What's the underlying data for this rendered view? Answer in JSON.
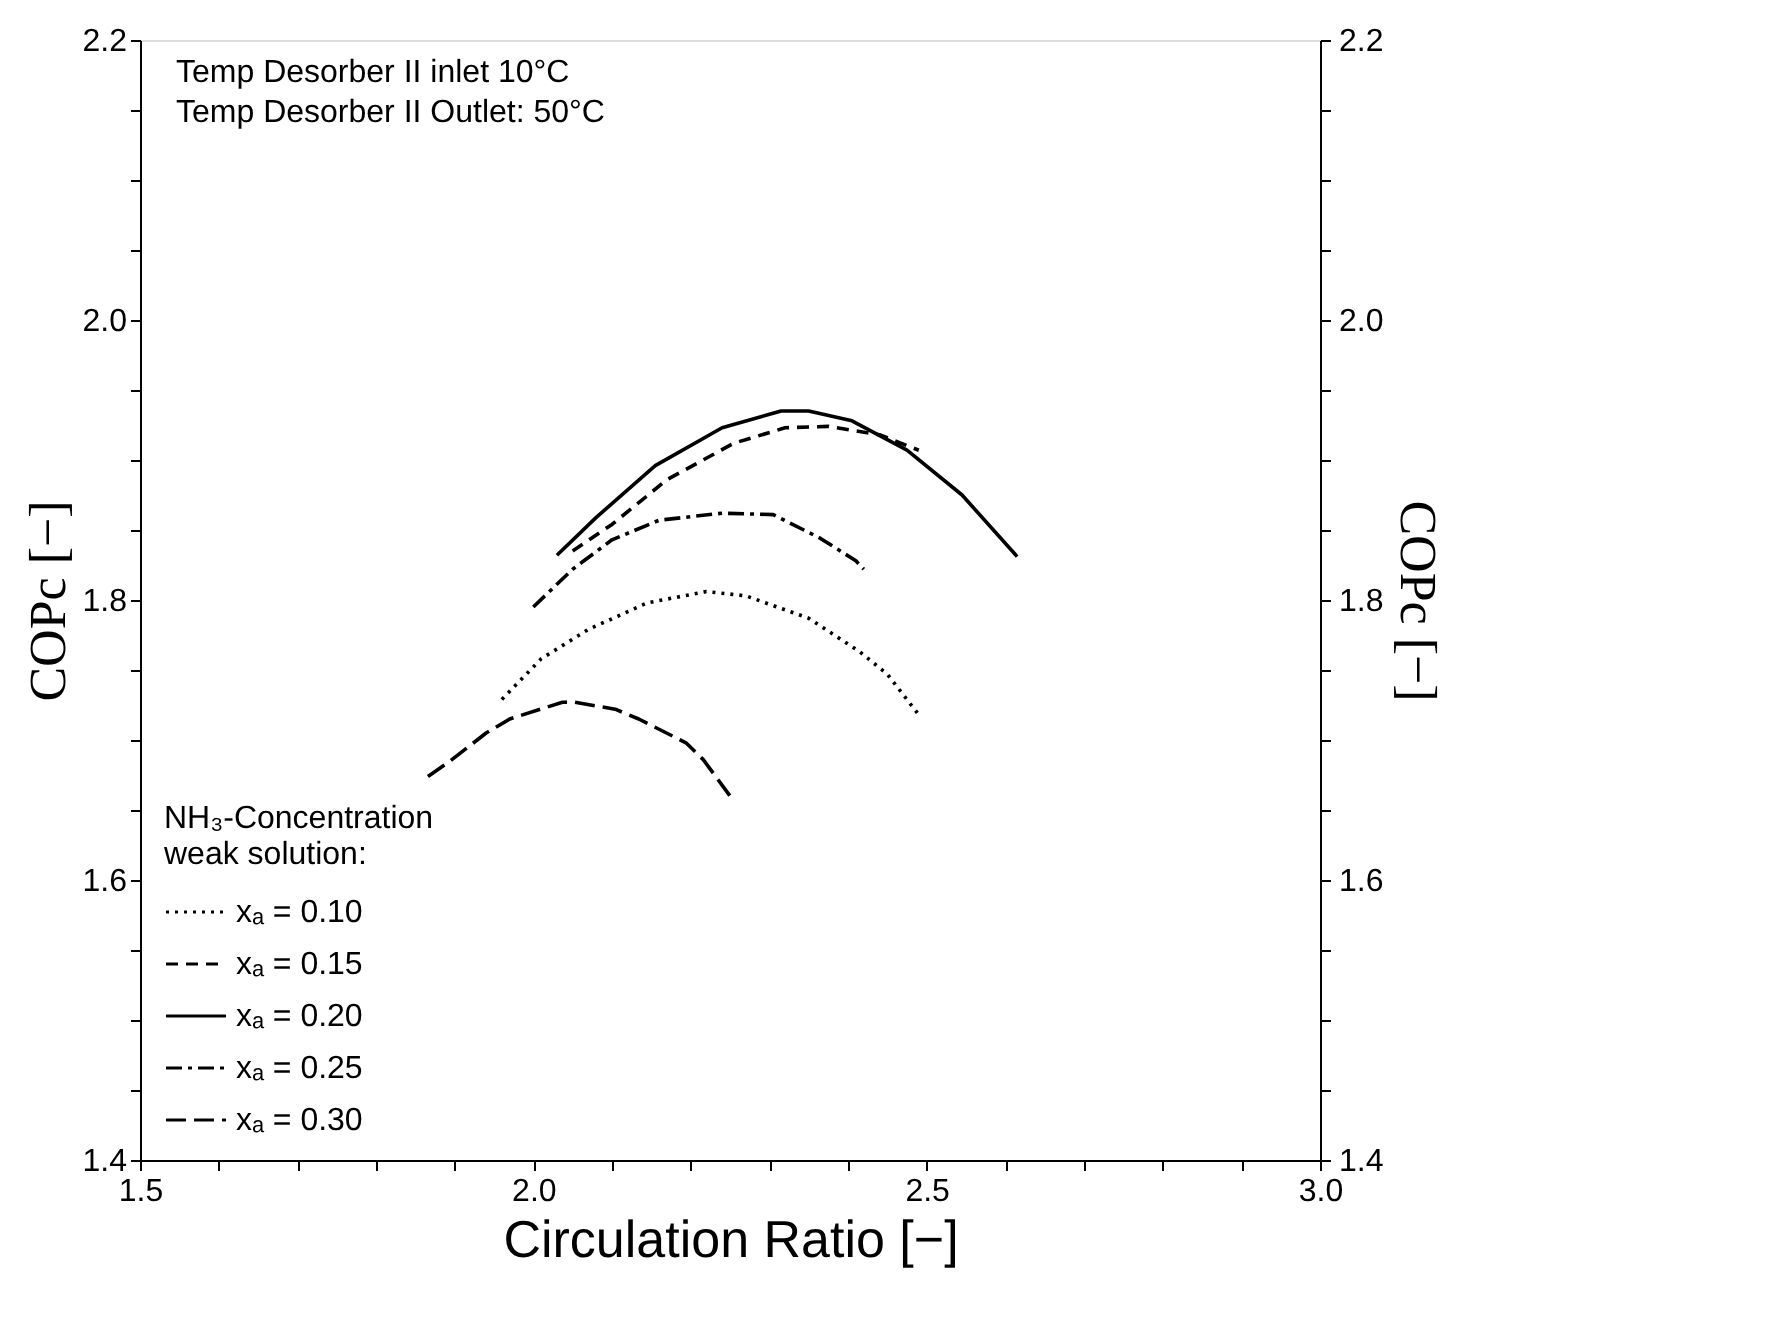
{
  "chart_data": {
    "type": "line",
    "xlabel": "Circulation Ratio  [−]",
    "ylabel": "COPc  [−]",
    "y2label": "COPc  [−]",
    "legend_title": "NH₃-Concentration\nweak solution:",
    "annotations": [
      "Temp  Desorber II inlet     10°C",
      "Temp  Desorber II Outlet:  50°C"
    ],
    "xlim": [
      1.5,
      3.0
    ],
    "ylim": [
      1.4,
      2.2
    ],
    "y2lim": [
      1.4,
      2.2
    ],
    "xticks": [
      {
        "value": 1.5,
        "label": "1.5"
      },
      {
        "value": 1.6,
        "label": null
      },
      {
        "value": 1.7,
        "label": null
      },
      {
        "value": 1.8,
        "label": null
      },
      {
        "value": 1.9,
        "label": null
      },
      {
        "value": 2.0,
        "label": "2.0"
      },
      {
        "value": 2.1,
        "label": null
      },
      {
        "value": 2.2,
        "label": null
      },
      {
        "value": 2.3,
        "label": null
      },
      {
        "value": 2.4,
        "label": null
      },
      {
        "value": 2.5,
        "label": "2.5"
      },
      {
        "value": 2.6,
        "label": null
      },
      {
        "value": 2.7,
        "label": null
      },
      {
        "value": 2.8,
        "label": null
      },
      {
        "value": 2.9,
        "label": null
      },
      {
        "value": 3.0,
        "label": "3.0"
      }
    ],
    "yticks": [
      {
        "value": 1.4,
        "label": "1.4"
      },
      {
        "value": 1.45,
        "label": null
      },
      {
        "value": 1.5,
        "label": null
      },
      {
        "value": 1.55,
        "label": null
      },
      {
        "value": 1.6,
        "label": "1.6"
      },
      {
        "value": 1.65,
        "label": null
      },
      {
        "value": 1.7,
        "label": null
      },
      {
        "value": 1.75,
        "label": null
      },
      {
        "value": 1.8,
        "label": "1.8"
      },
      {
        "value": 1.85,
        "label": null
      },
      {
        "value": 1.9,
        "label": null
      },
      {
        "value": 1.95,
        "label": null
      },
      {
        "value": 2.0,
        "label": "2.0"
      },
      {
        "value": 2.05,
        "label": null
      },
      {
        "value": 2.1,
        "label": null
      },
      {
        "value": 2.15,
        "label": null
      },
      {
        "value": 2.2,
        "label": "2.2"
      }
    ],
    "y2ticks": [
      {
        "value": 1.4,
        "label": "1.4"
      },
      {
        "value": 1.45,
        "label": null
      },
      {
        "value": 1.5,
        "label": null
      },
      {
        "value": 1.55,
        "label": null
      },
      {
        "value": 1.6,
        "label": "1.6"
      },
      {
        "value": 1.65,
        "label": null
      },
      {
        "value": 1.7,
        "label": null
      },
      {
        "value": 1.75,
        "label": null
      },
      {
        "value": 1.8,
        "label": "1.8"
      },
      {
        "value": 1.85,
        "label": null
      },
      {
        "value": 1.9,
        "label": null
      },
      {
        "value": 1.95,
        "label": null
      },
      {
        "value": 2.0,
        "label": "2.0"
      },
      {
        "value": 2.05,
        "label": null
      },
      {
        "value": 2.1,
        "label": null
      },
      {
        "value": 2.15,
        "label": null
      },
      {
        "value": 2.2,
        "label": "2.2"
      }
    ],
    "grid": false,
    "legend": "bottom left",
    "marker": "none",
    "series": [
      {
        "name": "xₐ = 0.10",
        "color": "#000000",
        "line_style": "dotted",
        "x": [
          1.96,
          2.01,
          2.07,
          2.145,
          2.22,
          2.27,
          2.35,
          2.415,
          2.45,
          2.49
        ],
        "values": [
          1.729,
          1.758,
          1.779,
          1.798,
          1.806,
          1.803,
          1.787,
          1.763,
          1.747,
          1.718
        ]
      },
      {
        "name": "xₐ = 0.15",
        "color": "#000000",
        "line_style": "dashed",
        "x": [
          2.05,
          2.1,
          2.17,
          2.255,
          2.32,
          2.375,
          2.44,
          2.49
        ],
        "values": [
          1.835,
          1.854,
          1.886,
          1.912,
          1.923,
          1.924,
          1.918,
          1.907
        ]
      },
      {
        "name": "xₐ = 0.20",
        "color": "#000000",
        "line_style": "solid",
        "x": [
          2.03,
          2.08,
          2.155,
          2.24,
          2.315,
          2.35,
          2.405,
          2.475,
          2.545,
          2.615
        ],
        "values": [
          1.832,
          1.859,
          1.896,
          1.923,
          1.935,
          1.935,
          1.928,
          1.907,
          1.875,
          1.831
        ]
      },
      {
        "name": "xₐ = 0.25",
        "color": "#000000",
        "line_style": "dashdot",
        "x": [
          2.0,
          2.05,
          2.1,
          2.16,
          2.24,
          2.305,
          2.365,
          2.41,
          2.42
        ],
        "values": [
          1.795,
          1.822,
          1.843,
          1.857,
          1.862,
          1.861,
          1.844,
          1.828,
          1.822
        ]
      },
      {
        "name": "xₐ = 0.30",
        "color": "#000000",
        "line_style": "longdash",
        "x": [
          1.866,
          1.892,
          1.94,
          1.97,
          2.037,
          2.052,
          2.104,
          2.134,
          2.194,
          2.216,
          2.25
        ],
        "values": [
          1.674,
          1.684,
          1.705,
          1.715,
          1.727,
          1.727,
          1.722,
          1.715,
          1.698,
          1.686,
          1.66
        ]
      }
    ]
  }
}
